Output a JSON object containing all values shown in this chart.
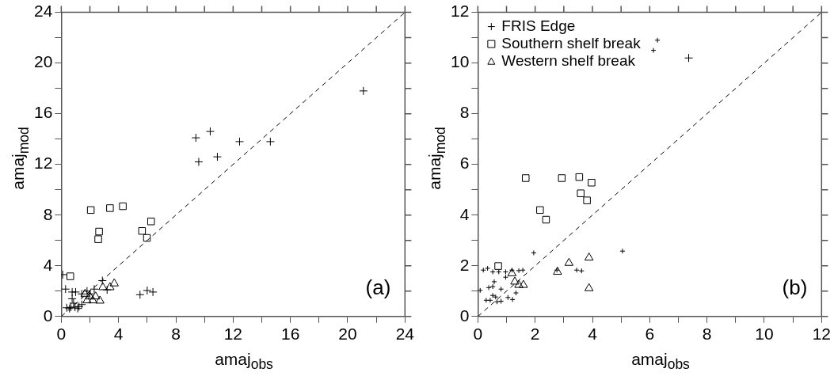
{
  "chart_data": [
    {
      "type": "scatter",
      "xlabel": "amaj$_{obs}$",
      "ylabel": "amaj$_{mod}$",
      "xlim": [
        0,
        24
      ],
      "ylim": [
        0,
        24
      ],
      "xticks": [
        0,
        {
          "value": 2,
          "label": null
        },
        4,
        {
          "value": 6,
          "label": null
        },
        8,
        {
          "value": 10,
          "label": null
        },
        12,
        {
          "value": 14,
          "label": null
        },
        16,
        {
          "value": 18,
          "label": null
        },
        20,
        {
          "value": 22,
          "label": null
        },
        24
      ],
      "yticks": [
        0,
        {
          "value": 2,
          "label": null
        },
        4,
        {
          "value": 6,
          "label": null
        },
        8,
        {
          "value": 10,
          "label": null
        },
        12,
        {
          "value": 14,
          "label": null
        },
        16,
        {
          "value": 18,
          "label": null
        },
        20,
        {
          "value": 22,
          "label": null
        },
        24
      ],
      "annotations": [
        "(a)"
      ],
      "series": [
        {
          "type": "line",
          "color": "#000000",
          "marker": "none",
          "line_style": "dashed",
          "x": [
            0,
            24
          ],
          "values": [
            0,
            24
          ]
        },
        {
          "color": "#000000",
          "marker": "cross",
          "x": [
            9.6,
            10.9,
            12.45,
            21.1
          ],
          "values": [
            12.2,
            12.6,
            13.8,
            17.8
          ]
        },
        {
          "color": "#000000",
          "marker": "square",
          "x": [
            2.06,
            3.4,
            4.3,
            2.64,
            2.58,
            5.64,
            6.27,
            5.98,
            0.63
          ],
          "values": [
            8.4,
            8.55,
            8.7,
            6.7,
            6.1,
            6.75,
            7.5,
            6.2,
            3.17
          ]
        },
        {
          "color": "#000000",
          "marker": "triangle",
          "x": [
            2.9,
            3.4,
            3.7,
            2.7,
            1.66,
            2.0,
            2.2,
            1.8,
            2.4
          ],
          "values": [
            2.3,
            2.3,
            2.6,
            1.24,
            1.78,
            1.57,
            1.26,
            1.26,
            1.57
          ]
        },
        {
          "color": "#000000",
          "marker": "cross",
          "x": [
            9.4,
            10.4,
            14.6,
            5.5,
            6.0,
            6.4,
            0.1,
            0.3,
            0.76,
            1.0,
            2.87,
            3.2,
            1.43,
            1.8,
            2.3,
            0.76,
            0.67,
            0.38,
            0.96,
            1.24,
            0.86,
            0.57,
            1.43,
            1.15,
            2.0
          ],
          "values": [
            14.1,
            14.6,
            13.8,
            1.72,
            2.05,
            1.93,
            3.3,
            2.16,
            1.93,
            1.93,
            2.83,
            2.1,
            1.78,
            2.0,
            2.16,
            1.4,
            0.73,
            0.69,
            0.73,
            0.78,
            1.05,
            0.63,
            0.94,
            0.63,
            1.78
          ]
        }
      ]
    },
    {
      "type": "scatter",
      "xlabel": "amaj$_{obs}$",
      "ylabel": "amaj$_{mod}$",
      "xlim": [
        0,
        12
      ],
      "ylim": [
        0,
        12
      ],
      "legend": "top left",
      "xticks": [
        0,
        {
          "value": 1,
          "label": null
        },
        2,
        {
          "value": 3,
          "label": null
        },
        4,
        {
          "value": 5,
          "label": null
        },
        6,
        {
          "value": 7,
          "label": null
        },
        8,
        {
          "value": 9,
          "label": null
        },
        10,
        {
          "value": 11,
          "label": null
        },
        12
      ],
      "yticks": [
        0,
        {
          "value": 1,
          "label": null
        },
        2,
        {
          "value": 3,
          "label": null
        },
        4,
        {
          "value": 5,
          "label": null
        },
        6,
        {
          "value": 7,
          "label": null
        },
        8,
        {
          "value": 9,
          "label": null
        },
        10,
        {
          "value": 11,
          "label": null
        },
        12
      ],
      "annotations": [
        "(b)"
      ],
      "series": [
        {
          "type": "line",
          "color": "#000000",
          "marker": "none",
          "line_style": "dashed",
          "x": [
            0,
            12
          ],
          "values": [
            0,
            12
          ]
        },
        {
          "name": "FRIS Edge",
          "color": "#000000",
          "marker": "cross",
          "x": [
            7.36
          ],
          "values": [
            10.2
          ]
        },
        {
          "name": "Southern shelf break",
          "color": "#000000",
          "marker": "square",
          "x": [
            1.67,
            2.93,
            3.54,
            3.97,
            3.59,
            3.81,
            2.17,
            2.38,
            0.71
          ],
          "values": [
            5.46,
            5.46,
            5.5,
            5.28,
            4.86,
            4.58,
            4.2,
            3.82,
            1.99
          ]
        },
        {
          "name": "Western shelf break",
          "color": "#000000",
          "marker": "triangle",
          "x": [
            1.19,
            1.29,
            1.43,
            1.59,
            2.78,
            3.18,
            3.88,
            3.88
          ],
          "values": [
            1.7,
            1.37,
            1.24,
            1.24,
            1.76,
            2.11,
            2.32,
            1.11
          ]
        },
        {
          "color": "#000000",
          "marker": "cross",
          "x": [
            6.27,
            6.13,
            0.19,
            0.34,
            0.52,
            0.73,
            0.97,
            1.19,
            1.43,
            1.57,
            1.95,
            0.97,
            0.57,
            0.52,
            0.38,
            0.81,
            0.08,
            0.52,
            0.62,
            0.29,
            0.43,
            0.67,
            0.81,
            1.05,
            1.21,
            1.33,
            1.43,
            2.76,
            3.45,
            3.62,
            5.05
          ],
          "values": [
            10.9,
            10.5,
            1.83,
            1.9,
            1.76,
            1.76,
            1.76,
            1.83,
            1.81,
            1.83,
            2.51,
            1.55,
            1.37,
            1.18,
            1.14,
            1.08,
            1.03,
            0.83,
            0.77,
            0.64,
            0.64,
            0.58,
            0.6,
            0.75,
            0.67,
            0.93,
            null,
            1.83,
            1.83,
            1.8,
            2.58
          ]
        }
      ]
    }
  ]
}
